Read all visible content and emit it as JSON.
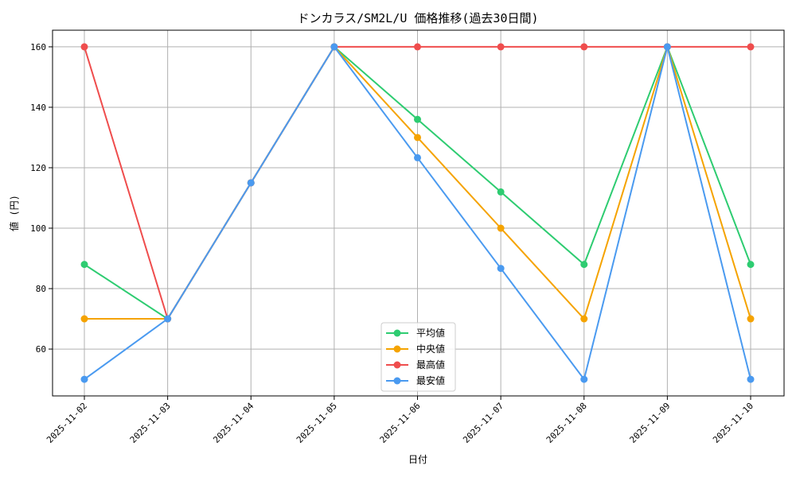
{
  "chart_data": {
    "type": "line",
    "title": "ドンカラス/SM2L/U 価格推移(過去30日間)",
    "xlabel": "日付",
    "ylabel": "値 (円)",
    "categories": [
      "2025-11-02",
      "2025-11-03",
      "2025-11-04",
      "2025-11-05",
      "2025-11-06",
      "2025-11-07",
      "2025-11-08",
      "2025-11-09",
      "2025-11-10"
    ],
    "ylim": [
      44.5,
      165.5
    ],
    "yticks": [
      60,
      80,
      100,
      120,
      140,
      160
    ],
    "grid": true,
    "legend_position": "bottom-center",
    "series": [
      {
        "name": "平均値",
        "color": "#2ecc71",
        "values": [
          88,
          70,
          115,
          160,
          136,
          112,
          88,
          160,
          88
        ]
      },
      {
        "name": "中央値",
        "color": "#f5a300",
        "values": [
          70,
          70,
          115,
          160,
          130,
          100,
          70,
          160,
          70
        ]
      },
      {
        "name": "最高値",
        "color": "#ef4d4d",
        "values": [
          160,
          70,
          115,
          160,
          160,
          160,
          160,
          160,
          160
        ]
      },
      {
        "name": "最安値",
        "color": "#4a9af0",
        "values": [
          50,
          70,
          115,
          160,
          123.3,
          86.7,
          50,
          160,
          50
        ]
      }
    ]
  }
}
